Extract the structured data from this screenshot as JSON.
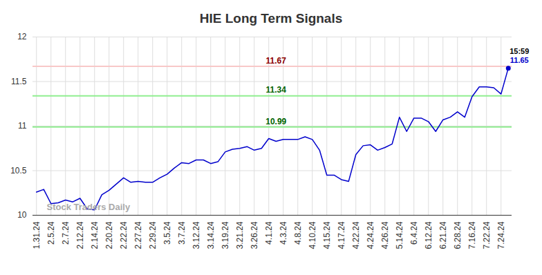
{
  "chart_data": {
    "type": "line",
    "title": "HIE Long Term Signals",
    "categories": [
      "1.31.24",
      null,
      "2.5.24",
      null,
      "2.7.24",
      null,
      "2.12.24",
      null,
      "2.14.24",
      null,
      "2.20.24",
      null,
      "2.22.24",
      null,
      "2.27.24",
      null,
      "2.29.24",
      null,
      "3.5.24",
      null,
      "3.7.24",
      null,
      "3.12.24",
      null,
      "3.14.24",
      null,
      "3.19.24",
      null,
      "3.21.24",
      null,
      "3.26.24",
      null,
      "4.1.24",
      null,
      "4.3.24",
      null,
      "4.8.24",
      null,
      "4.10.24",
      null,
      "4.15.24",
      null,
      "4.17.24",
      null,
      "4.22.24",
      null,
      "4.24.24",
      null,
      "4.26.24",
      null,
      "5.14.24",
      null,
      "6.4.24",
      null,
      "6.12.24",
      null,
      "6.21.24",
      null,
      "6.28.24",
      null,
      "7.16.24",
      null,
      "7.22.24",
      null,
      "7.24.24",
      null
    ],
    "series": [
      {
        "name": "HIE",
        "color": "#0000cc",
        "values": [
          10.26,
          10.29,
          10.13,
          10.14,
          10.17,
          10.15,
          10.19,
          10.07,
          10.06,
          10.23,
          10.28,
          10.35,
          10.42,
          10.37,
          10.38,
          10.37,
          10.37,
          10.42,
          10.46,
          10.53,
          10.59,
          10.58,
          10.62,
          10.62,
          10.58,
          10.6,
          10.71,
          10.74,
          10.75,
          10.77,
          10.73,
          10.75,
          10.86,
          10.83,
          10.85,
          10.85,
          10.85,
          10.88,
          10.85,
          10.73,
          10.45,
          10.45,
          10.4,
          10.38,
          10.68,
          10.78,
          10.79,
          10.73,
          10.76,
          10.8,
          11.1,
          10.94,
          11.09,
          11.09,
          11.05,
          10.94,
          11.07,
          11.1,
          11.16,
          11.1,
          11.33,
          11.44,
          11.44,
          11.43,
          11.36,
          11.65
        ]
      }
    ],
    "ylim": [
      10,
      12
    ],
    "yticks": [
      10,
      10.5,
      11,
      11.5,
      12
    ],
    "grid": true,
    "reference_lines": [
      {
        "value": 11.67,
        "label": "11.67",
        "color": "#f8c8c8",
        "text_color": "#8b0000"
      },
      {
        "value": 11.34,
        "label": "11.34",
        "color": "#90ee90",
        "text_color": "#006400"
      },
      {
        "value": 10.99,
        "label": "10.99",
        "color": "#90ee90",
        "text_color": "#006400"
      }
    ],
    "last_point": {
      "time": "15:59",
      "label": "11.65"
    },
    "watermark": "Stock Traders Daily"
  }
}
